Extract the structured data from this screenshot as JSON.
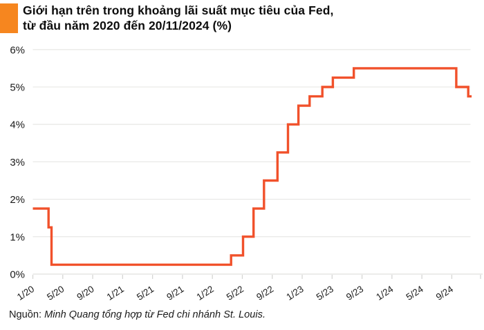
{
  "header": {
    "title_line1": "Giới hạn trên trong khoảng lãi suất mục tiêu của Fed,",
    "title_line2": "từ đầu năm 2020 đến 20/11/2024 (%)",
    "accent_color": "#F6861F"
  },
  "chart_data": {
    "type": "line",
    "subtype": "step",
    "title": "Giới hạn trên trong khoảng lãi suất mục tiêu của Fed, từ đầu năm 2020 đến 20/11/2024 (%)",
    "ylabel": "",
    "xlabel": "",
    "ylim": [
      0,
      6
    ],
    "grid": true,
    "legend": "none",
    "line_color": "#F1512B",
    "grid_color": "#e9e9e7",
    "axis_color": "#e0e0de",
    "tick_color": "#d6d6d4",
    "y_ticks": [
      "0%",
      "1%",
      "2%",
      "3%",
      "4%",
      "5%",
      "6%"
    ],
    "x_unit": "months since January 2020 (label format month/year)",
    "x_tick_months": [
      0,
      4,
      8,
      12,
      16,
      20,
      24,
      28,
      32,
      36,
      40,
      44,
      48,
      52,
      56
    ],
    "x_tick_labels": [
      "1/20",
      "5/20",
      "9/20",
      "1/21",
      "5/21",
      "9/21",
      "1/22",
      "5/22",
      "9/22",
      "1/23",
      "5/23",
      "9/23",
      "1/24",
      "5/24",
      "9/24"
    ],
    "points_note": "each point = [month offset from 1/2020, Fed target range upper limit % effective from that time]",
    "points": [
      [
        0,
        1.75
      ],
      [
        2.1,
        1.25
      ],
      [
        2.5,
        0.25
      ],
      [
        26.5,
        0.5
      ],
      [
        28.1,
        1.0
      ],
      [
        29.5,
        1.75
      ],
      [
        30.9,
        2.5
      ],
      [
        32.7,
        3.25
      ],
      [
        34.1,
        4.0
      ],
      [
        35.5,
        4.5
      ],
      [
        37.0,
        4.75
      ],
      [
        38.7,
        5.0
      ],
      [
        40.1,
        5.25
      ],
      [
        42.9,
        5.5
      ],
      [
        56.6,
        5.0
      ],
      [
        58.2,
        4.75
      ],
      [
        58.65,
        4.75
      ]
    ]
  },
  "footer": {
    "source_prefix": "Nguồn:",
    "source_text": "Minh Quang tổng hợp từ Fed chi nhánh St. Louis."
  }
}
